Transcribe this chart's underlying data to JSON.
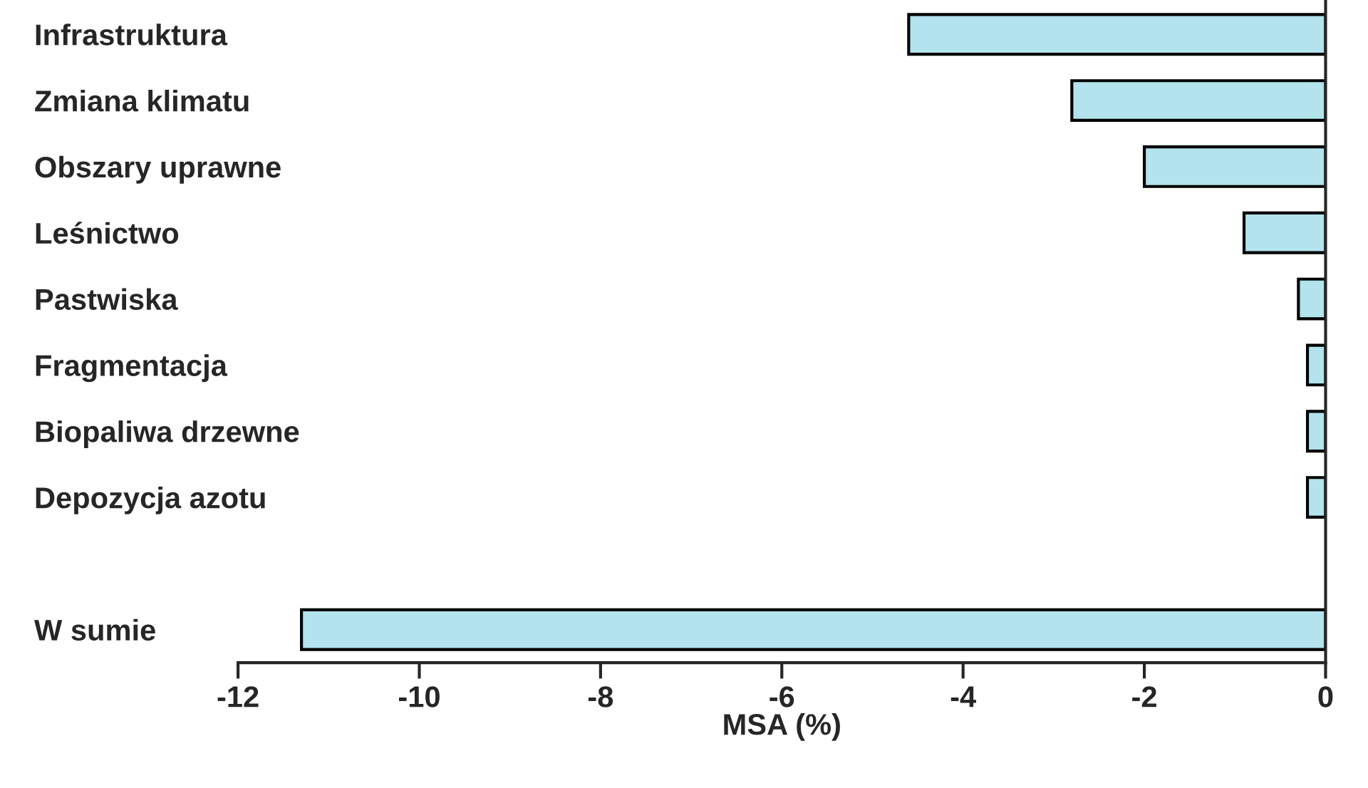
{
  "chart_data": {
    "type": "bar",
    "orientation": "horizontal",
    "xlabel": "MSA (%)",
    "categories": [
      "Infrastruktura",
      "Zmiana klimatu",
      "Obszary uprawne",
      "Leśnictwo",
      "Pastwiska",
      "Fragmentacja",
      "Biopaliwa drzewne",
      "Depozycja azotu",
      null,
      "W sumie"
    ],
    "values": [
      -4.6,
      -2.8,
      -2.0,
      -0.9,
      -0.3,
      -0.2,
      -0.2,
      -0.2,
      null,
      -11.3
    ],
    "color": "#b3e3ec",
    "xlim": [
      -12,
      0
    ],
    "xticks": [
      -12,
      -10,
      -8,
      -6,
      -4,
      -2,
      0
    ],
    "grid": false,
    "legend": false
  }
}
